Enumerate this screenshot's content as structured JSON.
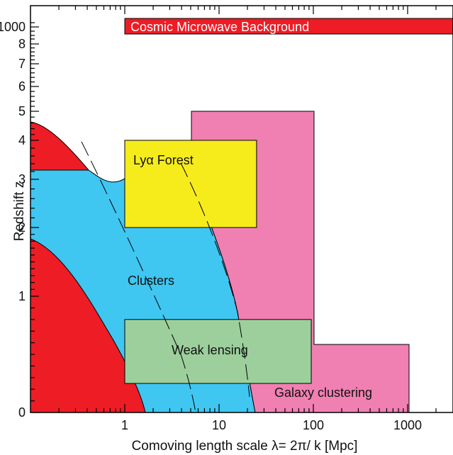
{
  "chart_data": {
    "type": "area",
    "xlabel": "Comoving length scale λ= 2π/ k [Mpc]",
    "ylabel": "Redshift z",
    "x_scale": "log",
    "y_scale": "custom (z mapped to y values listed in y_axis)",
    "xlim": [
      0.15,
      3000
    ],
    "x_ticks": [
      {
        "value": 1,
        "label": "1"
      },
      {
        "value": 10,
        "label": "10"
      },
      {
        "value": 100,
        "label": "100"
      },
      {
        "value": 1000,
        "label": "1000"
      }
    ],
    "y_axis": [
      {
        "label": "0",
        "z": 0
      },
      {
        "label": "1",
        "z": 1
      },
      {
        "label": "2",
        "z": 2
      },
      {
        "label": "3",
        "z": 3
      },
      {
        "label": "4",
        "z": 4
      },
      {
        "label": "5",
        "z": 5
      },
      {
        "label": "6",
        "z": 6
      },
      {
        "label": "7",
        "z": 7
      },
      {
        "label": "8",
        "z": 8
      },
      {
        "label": "1000",
        "z": 1000
      }
    ],
    "grid": false,
    "legend": "none",
    "regions": [
      {
        "label": "Cosmic Microwave Background",
        "color": "#ee1c25",
        "x": [
          1,
          3000
        ],
        "z": [
          920,
          1100
        ]
      },
      {
        "label": "Galaxy clustering",
        "color": "#f080b2",
        "shape": "step",
        "x_steps": [
          5.5,
          100,
          1000
        ],
        "z_tops": [
          5,
          0.5
        ]
      },
      {
        "label": "Lyα Forest",
        "color": "#f7ec1b",
        "x": [
          1,
          25
        ],
        "z": [
          2,
          4
        ]
      },
      {
        "label": "Weak lensing",
        "color": "#9ccf9c",
        "x": [
          1,
          95
        ],
        "z": [
          0.25,
          0.8
        ]
      },
      {
        "label": "Clusters",
        "color": "#3fc6f1"
      },
      {
        "label": "",
        "color": "#ee1c25",
        "note": "unlabelled red regions"
      }
    ]
  }
}
